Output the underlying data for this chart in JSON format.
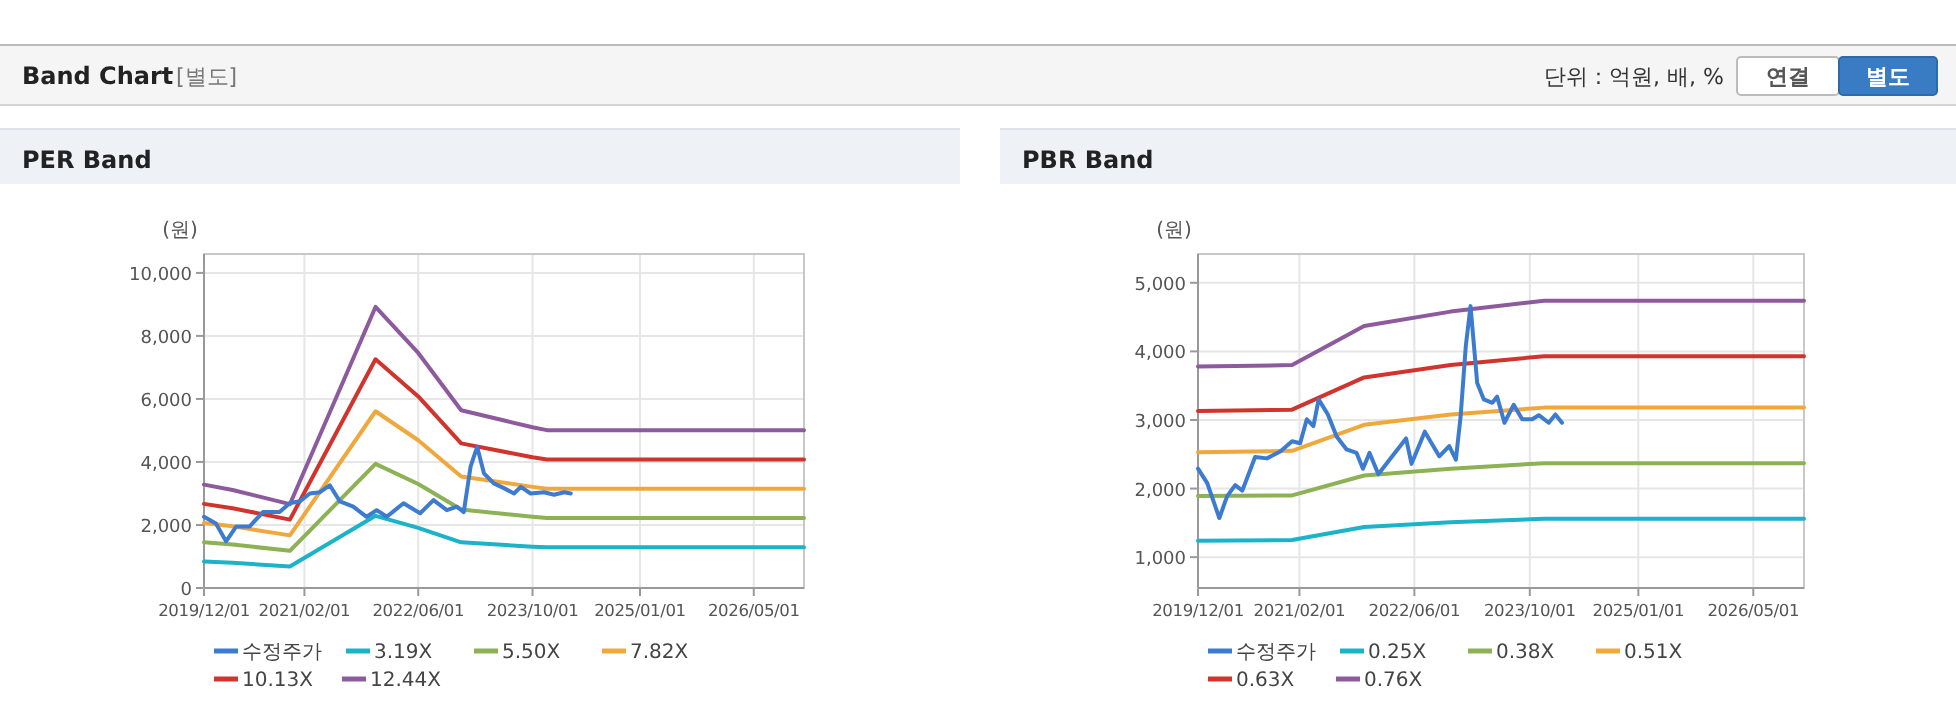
{
  "chart_data": [
    {
      "type": "line",
      "title": "PER Band",
      "ylabel": "(원)",
      "annotations": [
        "Band Chart",
        "[별도]",
        "단위 : 억원, 배, %",
        "연결",
        "별도"
      ],
      "xlim": [
        "2019-12-01",
        "2026-12-01"
      ],
      "ylim": [
        0,
        10600
      ],
      "xticks": [
        {
          "value": "2019-12-01",
          "label": "2019/12/01"
        },
        {
          "value": "2021-02-01",
          "label": "2021/02/01"
        },
        {
          "value": "2022-06-01",
          "label": "2022/06/01"
        },
        {
          "value": "2023-10-01",
          "label": "2023/10/01"
        },
        {
          "value": "2025-01-01",
          "label": "2025/01/01"
        },
        {
          "value": "2026-05-01",
          "label": "2026/05/01"
        }
      ],
      "yticks": [
        0,
        {
          "value": 2000,
          "label": "2,000"
        },
        {
          "value": 4000,
          "label": "4,000"
        },
        {
          "value": 6000,
          "label": "6,000"
        },
        {
          "value": 8000,
          "label": "8,000"
        },
        {
          "value": 10000,
          "label": "10,000"
        }
      ],
      "grid": true,
      "legend": "bottom",
      "line_style": "solid",
      "series": [
        {
          "name": "수정주가",
          "color": "#3d7bd1",
          "x": [
            "2019-12-01",
            "2020-01-21",
            "2020-03-04",
            "2020-04-16",
            "2020-06-12",
            "2020-08-08",
            "2020-10-18",
            "2020-11-30",
            "2021-01-12",
            "2021-02-24",
            "2021-04-08",
            "2021-05-20",
            "2021-07-02",
            "2021-08-28",
            "2021-10-24",
            "2021-12-06",
            "2022-01-18",
            "2022-03-30",
            "2022-06-09",
            "2022-08-05",
            "2022-10-01",
            "2022-11-13",
            "2022-12-12",
            "2023-01-10",
            "2023-02-07",
            "2023-03-08",
            "2023-04-19",
            "2023-06-01",
            "2023-07-14",
            "2023-08-12",
            "2023-09-23",
            "2023-11-19",
            "2024-01-01",
            "2024-02-13",
            "2024-03-12"
          ],
          "values": [
            2260,
            2050,
            1480,
            1950,
            1950,
            2410,
            2410,
            2690,
            2750,
            3000,
            3040,
            3260,
            2750,
            2580,
            2260,
            2470,
            2260,
            2690,
            2370,
            2790,
            2470,
            2580,
            2410,
            3850,
            4480,
            3640,
            3320,
            3170,
            3000,
            3210,
            3000,
            3040,
            2960,
            3040,
            3000
          ]
        },
        {
          "name": "3.19X",
          "color": "#1bb3c8",
          "x": [
            "2019-12",
            "2020-04",
            "2020-12",
            "2021-12",
            "2022-06",
            "2022-12",
            "2023-10",
            "2023-12",
            "2026-12"
          ],
          "values": [
            840,
            800,
            680,
            2290,
            1910,
            1450,
            1310,
            1290,
            1290
          ]
        },
        {
          "name": "5.50X",
          "color": "#8db255",
          "x": [
            "2019-12",
            "2020-04",
            "2020-12",
            "2021-12",
            "2022-06",
            "2022-12",
            "2023-10",
            "2023-12",
            "2026-12"
          ],
          "values": [
            1450,
            1380,
            1180,
            3940,
            3300,
            2490,
            2260,
            2220,
            2220
          ]
        },
        {
          "name": "7.82X",
          "color": "#f0a83c",
          "x": [
            "2019-12",
            "2020-04",
            "2020-12",
            "2021-12",
            "2022-06",
            "2022-12",
            "2023-10",
            "2023-12",
            "2026-12"
          ],
          "values": [
            2060,
            1960,
            1670,
            5610,
            4690,
            3540,
            3210,
            3150,
            3150
          ]
        },
        {
          "name": "10.13X",
          "color": "#d0342c",
          "x": [
            "2019-12",
            "2020-04",
            "2020-12",
            "2021-12",
            "2022-06",
            "2022-12",
            "2023-10",
            "2023-12",
            "2026-12"
          ],
          "values": [
            2670,
            2530,
            2170,
            7260,
            6080,
            4590,
            4150,
            4080,
            4080
          ]
        },
        {
          "name": "12.44X",
          "color": "#8e5a9e",
          "x": [
            "2019-12",
            "2020-04",
            "2020-12",
            "2021-12",
            "2022-06",
            "2022-12",
            "2023-10",
            "2023-12",
            "2026-12"
          ],
          "values": [
            3280,
            3110,
            2660,
            8920,
            7460,
            5640,
            5100,
            5010,
            5010
          ]
        }
      ]
    },
    {
      "type": "line",
      "title": "PBR Band",
      "ylabel": "(원)",
      "xlim": [
        "2019-12-01",
        "2026-12-01"
      ],
      "ylim": [
        550,
        5420
      ],
      "xticks": [
        {
          "value": "2019-12-01",
          "label": "2019/12/01"
        },
        {
          "value": "2021-02-01",
          "label": "2021/02/01"
        },
        {
          "value": "2022-06-01",
          "label": "2022/06/01"
        },
        {
          "value": "2023-10-01",
          "label": "2023/10/01"
        },
        {
          "value": "2025-01-01",
          "label": "2025/01/01"
        },
        {
          "value": "2026-05-01",
          "label": "2026/05/01"
        }
      ],
      "yticks": [
        {
          "value": 1000,
          "label": "1,000"
        },
        {
          "value": 2000,
          "label": "2,000"
        },
        {
          "value": 3000,
          "label": "3,000"
        },
        {
          "value": 4000,
          "label": "4,000"
        },
        {
          "value": 5000,
          "label": "5,000"
        }
      ],
      "grid": true,
      "legend": "bottom",
      "line_style": "solid",
      "series": [
        {
          "name": "수정주가",
          "color": "#3d7bd1",
          "x": [
            "2019-12-01",
            "2020-01-09",
            "2020-02-29",
            "2020-04-02",
            "2020-05-06",
            "2020-06-05",
            "2020-07-29",
            "2020-09-17",
            "2020-11-12",
            "2021-01-01",
            "2021-02-04",
            "2021-03-04",
            "2021-04-01",
            "2021-04-23",
            "2021-06-01",
            "2021-07-08",
            "2021-08-19",
            "2021-09-30",
            "2021-10-27",
            "2021-11-24",
            "2021-12-31",
            "2022-02-16",
            "2022-04-27",
            "2022-05-20",
            "2022-07-15",
            "2022-09-14",
            "2022-10-26",
            "2022-11-23",
            "2022-12-13",
            "2023-01-04",
            "2023-01-24",
            "2023-02-21",
            "2023-03-21",
            "2023-04-26",
            "2023-05-16",
            "2023-06-16",
            "2023-07-25",
            "2023-08-30",
            "2023-10-11",
            "2023-11-08",
            "2023-12-20",
            "2024-01-17",
            "2024-02-14"
          ],
          "values": [
            2290,
            2080,
            1570,
            1890,
            2050,
            1970,
            2460,
            2440,
            2540,
            2690,
            2660,
            3010,
            2910,
            3300,
            3080,
            2760,
            2570,
            2520,
            2290,
            2520,
            2210,
            2420,
            2730,
            2360,
            2830,
            2470,
            2620,
            2420,
            3050,
            4080,
            4660,
            3540,
            3300,
            3250,
            3340,
            2960,
            3220,
            3010,
            3010,
            3070,
            2960,
            3080,
            2960
          ]
        },
        {
          "name": "0.25X",
          "color": "#1bb3c8",
          "x": [
            "2019-12",
            "2021-01",
            "2021-11",
            "2022-11",
            "2023-12",
            "2026-12"
          ],
          "values": [
            1240,
            1250,
            1440,
            1510,
            1560,
            1560
          ]
        },
        {
          "name": "0.38X",
          "color": "#8db255",
          "x": [
            "2019-12",
            "2021-01",
            "2021-11",
            "2022-11",
            "2023-12",
            "2026-12"
          ],
          "values": [
            1890,
            1900,
            2190,
            2290,
            2370,
            2370
          ]
        },
        {
          "name": "0.51X",
          "color": "#f0a83c",
          "x": [
            "2019-12",
            "2021-01",
            "2021-11",
            "2022-11",
            "2023-12",
            "2026-12"
          ],
          "values": [
            2530,
            2550,
            2930,
            3080,
            3180,
            3180
          ]
        },
        {
          "name": "0.63X",
          "color": "#d0342c",
          "x": [
            "2019-12",
            "2021-01",
            "2021-11",
            "2022-11",
            "2023-12",
            "2026-12"
          ],
          "values": [
            3130,
            3150,
            3620,
            3800,
            3930,
            3930
          ]
        },
        {
          "name": "0.76X",
          "color": "#8e5a9e",
          "x": [
            "2019-12",
            "2021-01",
            "2021-11",
            "2022-11",
            "2023-12",
            "2026-12"
          ],
          "values": [
            3780,
            3800,
            4370,
            4580,
            4740,
            4740
          ]
        }
      ]
    }
  ]
}
